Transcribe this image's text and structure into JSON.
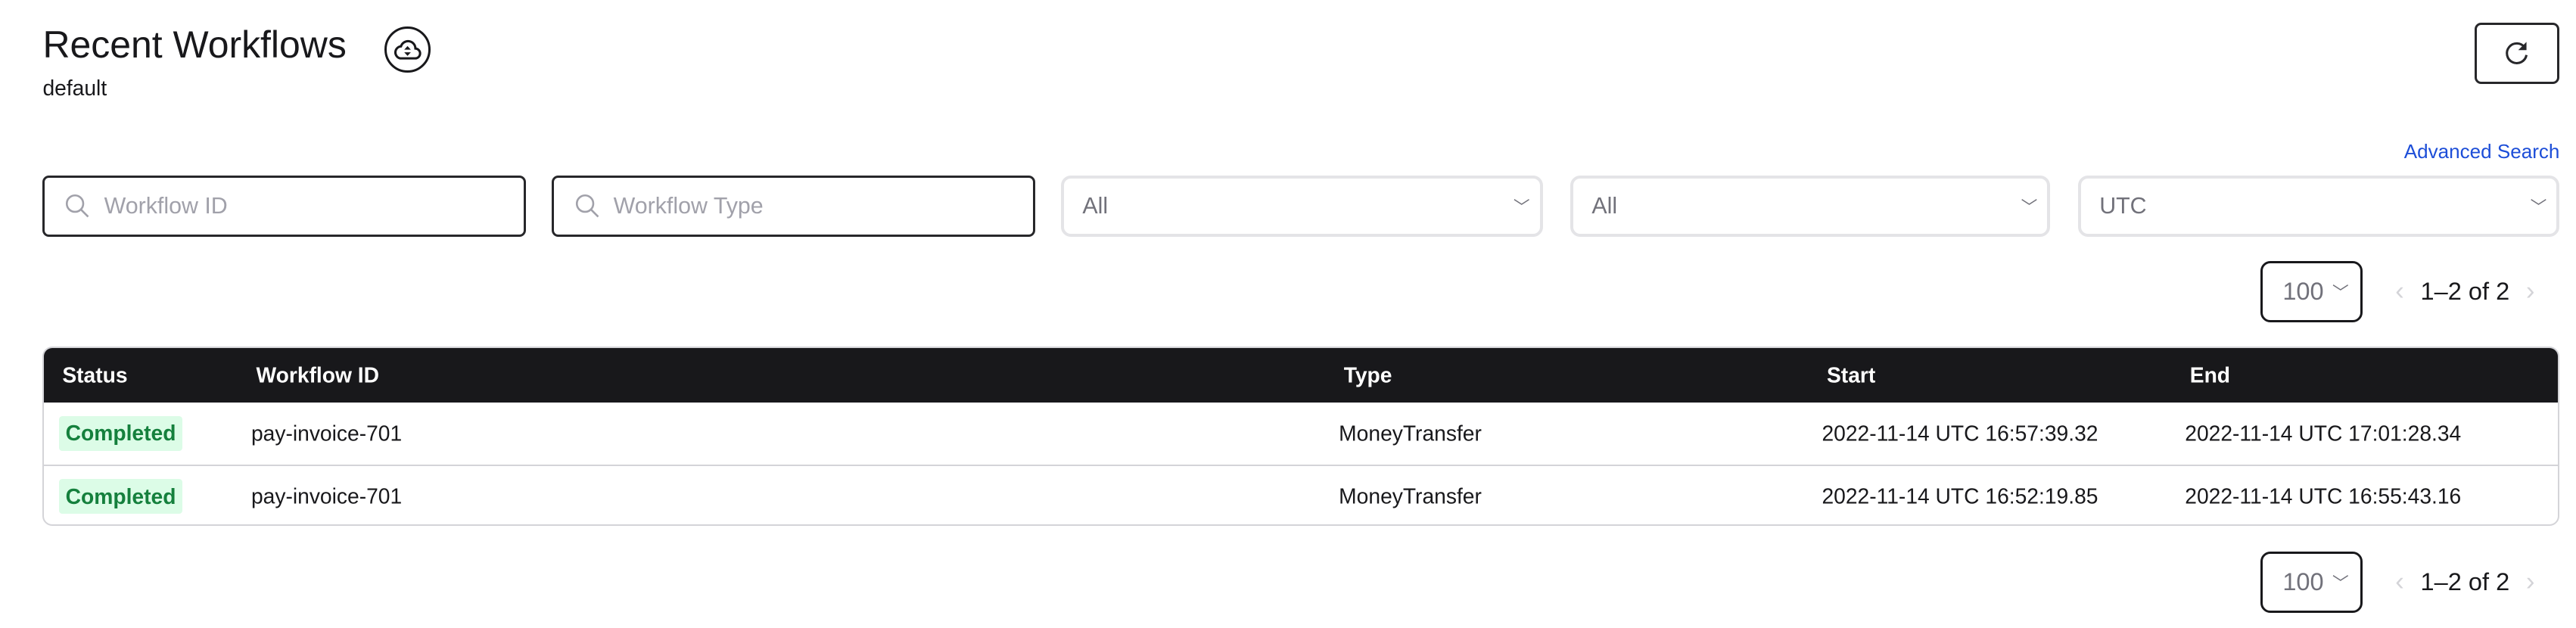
{
  "header": {
    "title": "Recent Workflows",
    "namespace": "default",
    "archive_icon": "cloud-archive-icon",
    "refresh_icon": "refresh-icon"
  },
  "filters": {
    "advanced_search": "Advanced Search",
    "workflow_id_placeholder": "Workflow ID",
    "workflow_type_placeholder": "Workflow Type",
    "status_select": "All",
    "time_range_select": "All",
    "timezone_select": "UTC"
  },
  "pagination": {
    "page_size": "100",
    "range": "1–2 of 2"
  },
  "table": {
    "columns": [
      "Status",
      "Workflow ID",
      "Type",
      "Start",
      "End"
    ],
    "rows": [
      {
        "status": "Completed",
        "workflow_id": "pay-invoice-701",
        "type": "MoneyTransfer",
        "start": "2022-11-14 UTC 16:57:39.32",
        "end": "2022-11-14 UTC 17:01:28.34"
      },
      {
        "status": "Completed",
        "workflow_id": "pay-invoice-701",
        "type": "MoneyTransfer",
        "start": "2022-11-14 UTC 16:52:19.85",
        "end": "2022-11-14 UTC 16:55:43.16"
      }
    ]
  },
  "colors": {
    "accent_link": "#1d4ed8",
    "header_bg": "#18181b",
    "completed_bg": "#dcfce7",
    "completed_text": "#15803d"
  }
}
